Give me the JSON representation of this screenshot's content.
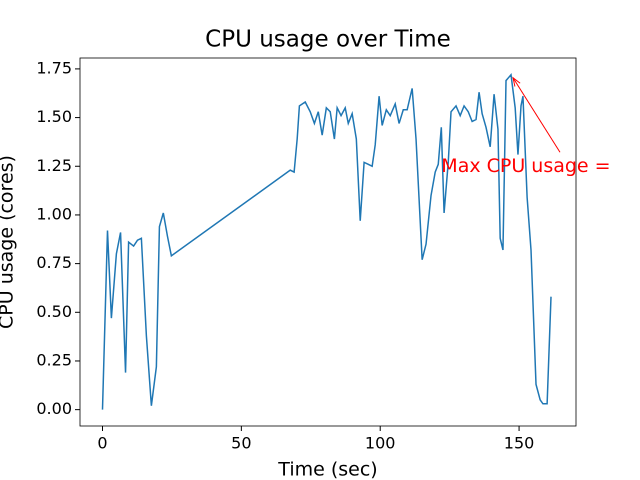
{
  "chart_data": {
    "type": "line",
    "title": "CPU usage over Time",
    "xlabel": "Time (sec)",
    "ylabel": "CPU usage (cores)",
    "series": [
      {
        "name": "CPU usage",
        "color": "#1f77b4",
        "x": [
          0,
          1.8,
          3.2,
          5,
          6.5,
          8.3,
          9.4,
          11.2,
          12.6,
          14,
          15.8,
          17.6,
          19.4,
          20.5,
          21.9,
          23.4,
          24.8,
          67.6,
          69,
          70.1,
          70.9,
          73,
          74.8,
          76.3,
          77.7,
          79.1,
          80.6,
          82,
          83.5,
          84.5,
          85.9,
          87.4,
          88.5,
          89.9,
          91.4,
          92.8,
          94.2,
          95.7,
          97.1,
          98.2,
          99.6,
          100.7,
          102.2,
          103.6,
          105.4,
          106.8,
          108.3,
          109.7,
          111.5,
          112.9,
          115.1,
          116.5,
          118.3,
          119.8,
          120.9,
          122,
          123,
          124.5,
          125.5,
          127.3,
          128.8,
          130.2,
          131.7,
          133.1,
          134.5,
          135.6,
          136.7,
          138.1,
          139.6,
          141,
          142.4,
          143.2,
          144.2,
          145.3,
          147.1,
          148.6,
          149.6,
          150.7,
          151.4,
          152.9,
          154.3,
          156.1,
          157.6,
          158.6,
          160.1,
          161.5
        ],
        "values": [
          0,
          0.92,
          0.47,
          0.8,
          0.91,
          0.19,
          0.86,
          0.84,
          0.87,
          0.88,
          0.38,
          0.02,
          0.22,
          0.94,
          1.01,
          0.89,
          0.79,
          1.23,
          1.22,
          1.39,
          1.56,
          1.58,
          1.53,
          1.47,
          1.53,
          1.41,
          1.55,
          1.53,
          1.39,
          1.55,
          1.51,
          1.55,
          1.47,
          1.52,
          1.39,
          0.97,
          1.27,
          1.26,
          1.25,
          1.36,
          1.61,
          1.46,
          1.54,
          1.51,
          1.57,
          1.47,
          1.54,
          1.54,
          1.65,
          1.39,
          0.77,
          0.85,
          1.1,
          1.22,
          1.26,
          1.45,
          1.01,
          1.27,
          1.53,
          1.56,
          1.51,
          1.56,
          1.53,
          1.48,
          1.49,
          1.63,
          1.52,
          1.45,
          1.35,
          1.62,
          1.44,
          0.88,
          0.82,
          1.69,
          1.72,
          1.55,
          1.31,
          1.56,
          1.61,
          1.09,
          0.82,
          0.13,
          0.05,
          0.03,
          0.03,
          0.58
        ]
      }
    ],
    "xlim": [
      -8.1,
      170.5
    ],
    "ylim": [
      -0.084,
      1.806
    ],
    "xticks": [
      0,
      50,
      100,
      150
    ],
    "yticks": [
      {
        "value": 0,
        "label": "0.00"
      },
      {
        "value": 0.25,
        "label": "0.25"
      },
      {
        "value": 0.5,
        "label": "0.50"
      },
      {
        "value": 0.75,
        "label": "0.75"
      },
      {
        "value": 1,
        "label": "1.00"
      },
      {
        "value": 1.25,
        "label": "1.25"
      },
      {
        "value": 1.5,
        "label": "1.50"
      },
      {
        "value": 1.75,
        "label": "1.75"
      }
    ],
    "annotation": {
      "text": "Max CPU usage =",
      "color": "#ff0000",
      "x": 147.1,
      "y": 1.72,
      "text_x": 122,
      "text_y": 1.25
    }
  }
}
